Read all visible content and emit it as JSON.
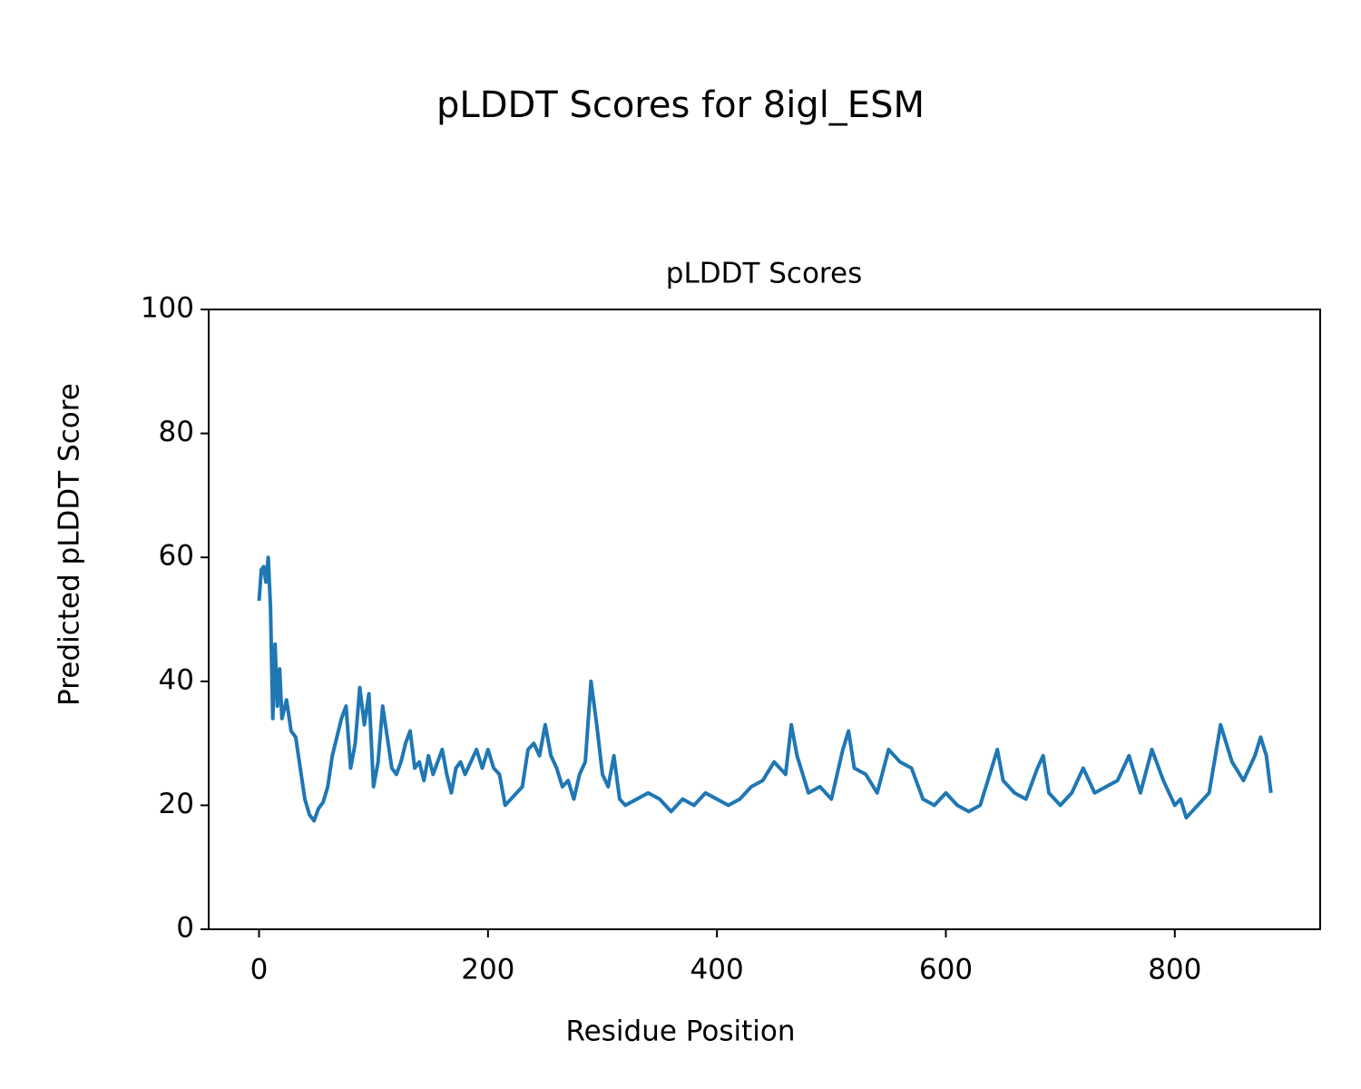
{
  "chart_data": {
    "type": "line",
    "suptitle": "pLDDT Scores for 8igl_ESM",
    "title": "pLDDT Scores",
    "xlabel": "Residue Position",
    "ylabel": "Predicted pLDDT Score",
    "xlim": [
      -44,
      927
    ],
    "ylim": [
      0,
      100
    ],
    "xticks": [
      0,
      200,
      400,
      600,
      800
    ],
    "yticks": [
      0,
      20,
      40,
      60,
      80,
      100
    ],
    "grid": false,
    "x": [
      0,
      2,
      4,
      6,
      8,
      10,
      12,
      14,
      16,
      18,
      20,
      24,
      28,
      32,
      36,
      40,
      44,
      48,
      52,
      56,
      60,
      64,
      68,
      72,
      76,
      80,
      84,
      88,
      92,
      96,
      100,
      104,
      108,
      112,
      116,
      120,
      124,
      128,
      132,
      136,
      140,
      144,
      148,
      152,
      156,
      160,
      164,
      168,
      172,
      176,
      180,
      185,
      190,
      195,
      200,
      205,
      210,
      215,
      220,
      225,
      230,
      235,
      240,
      245,
      250,
      255,
      260,
      265,
      270,
      275,
      280,
      285,
      290,
      295,
      300,
      305,
      310,
      315,
      320,
      330,
      340,
      350,
      360,
      370,
      380,
      390,
      400,
      410,
      420,
      430,
      440,
      450,
      460,
      465,
      470,
      480,
      490,
      500,
      510,
      515,
      520,
      530,
      540,
      550,
      560,
      570,
      580,
      590,
      600,
      610,
      620,
      630,
      640,
      645,
      650,
      660,
      670,
      680,
      685,
      690,
      700,
      710,
      720,
      730,
      740,
      750,
      760,
      770,
      780,
      790,
      800,
      805,
      810,
      820,
      830,
      840,
      845,
      850,
      860,
      870,
      875,
      880,
      884
    ],
    "series": [
      {
        "name": "pLDDT",
        "color": "#1f77b4",
        "values": [
          53,
          58,
          58.5,
          56,
          60,
          52,
          34,
          46,
          36,
          42,
          34,
          37,
          32,
          31,
          26,
          21,
          18.5,
          17.5,
          19.5,
          20.5,
          23,
          28,
          31,
          34,
          36,
          26,
          30,
          39,
          33,
          38,
          23,
          27,
          36,
          31,
          26,
          25,
          27,
          30,
          32,
          26,
          27,
          24,
          28,
          25,
          27,
          29,
          25,
          22,
          26,
          27,
          25,
          27,
          29,
          26,
          29,
          26,
          25,
          20,
          21,
          22,
          23,
          29,
          30,
          28,
          33,
          28,
          26,
          23,
          24,
          21,
          25,
          27,
          40,
          33,
          25,
          23,
          28,
          21,
          20,
          21,
          22,
          21,
          19,
          21,
          20,
          22,
          21,
          20,
          21,
          23,
          24,
          27,
          25,
          33,
          28,
          22,
          23,
          21,
          29,
          32,
          26,
          25,
          22,
          29,
          27,
          26,
          21,
          20,
          22,
          20,
          19,
          20,
          26,
          29,
          24,
          22,
          21,
          26,
          28,
          22,
          20,
          22,
          26,
          22,
          23,
          24,
          28,
          22,
          29,
          24,
          20,
          21,
          18,
          20,
          22,
          33,
          30,
          27,
          24,
          28,
          31,
          28,
          22
        ]
      }
    ]
  }
}
